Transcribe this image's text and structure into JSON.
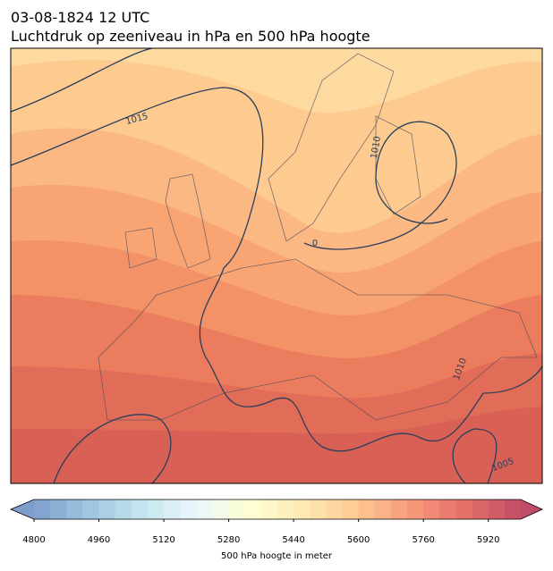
{
  "header": {
    "date": "03-08-1824 12 UTC",
    "title": "Luchtdruk op zeeniveau in hPa en 500 hPa hoogte"
  },
  "map": {
    "isobar_labels": [
      "1015",
      "1010",
      "0",
      "1010",
      "1005"
    ]
  },
  "colorbar": {
    "lim": [
      4800,
      6000
    ],
    "ticks": [
      4800,
      4960,
      5120,
      5280,
      5440,
      5600,
      5760,
      5920
    ],
    "label": "500 hPa hoogte in meter"
  }
}
